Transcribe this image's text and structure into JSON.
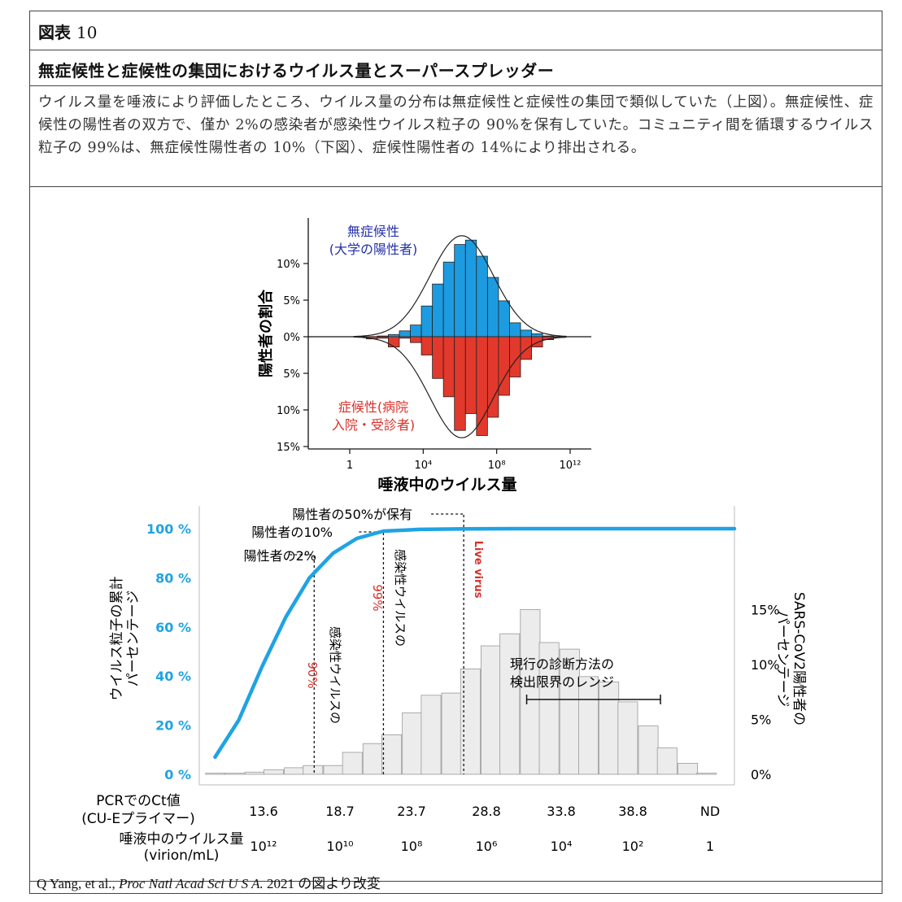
{
  "figure_label": {
    "prefix": "図表",
    "number": "10"
  },
  "title": "無症候性と症候性の集団におけるウイルス量とスーパースプレッダー",
  "description": "ウイルス量を唾液により評価したところ、ウイルス量の分布は無症候性と症候性の集団で類似していた（上図）。無症候性、症候性の陽性者の双方で、僅か 2%の感染者が感染性ウイルス粒子の 90%を保有していた。コミュニティ間を循環するウイルス粒子の 99%は、無症候性陽性者の 10%（下図）、症候性陽性者の 14%により排出される。",
  "source": {
    "authors": "Q Yang, et al., ",
    "journal": "Proc Natl Acad Sci U S A.",
    "rest": " 2021 の図より改変"
  },
  "colors": {
    "asymptomatic": "#1d9be0",
    "symptomatic": "#e2392c",
    "cumulative": "#1fa3e3",
    "hist_fill": "#ececec",
    "red_text": "#d8302a",
    "blue_text": "#2331a8"
  },
  "chart_data": [
    {
      "type": "bar",
      "ylabel": "陽性者の割合",
      "xlabel": "唾液中のウイルス量",
      "x_ticks": [
        "1",
        "10⁴",
        "10⁸",
        "10¹²"
      ],
      "y_ticks_top": [
        "10%",
        "5%",
        "0%"
      ],
      "y_ticks_bottom": [
        "5%",
        "10%",
        "15%"
      ],
      "ylim": [
        -15,
        15
      ],
      "x_log10_range": [
        0,
        12
      ],
      "bin_width_log10": 0.6,
      "x_log10_bin_starts": [
        0.3,
        0.9,
        1.5,
        2.1,
        2.7,
        3.3,
        3.9,
        4.5,
        5.1,
        5.7,
        6.3,
        6.9,
        7.5,
        8.1,
        8.7,
        9.3,
        9.9,
        10.5,
        11.1
      ],
      "series": [
        {
          "name": "無症候性\n(大学の陽性者)",
          "values": [
            0,
            0,
            0.1,
            0.3,
            0.8,
            1.6,
            4.2,
            7.2,
            10.2,
            12.6,
            13.2,
            11.0,
            8.1,
            4.9,
            1.9,
            0.9,
            0.4,
            0.1,
            0
          ]
        },
        {
          "name": "症候性(病院\n入院・受診者)",
          "values": [
            0,
            -0.3,
            -0.2,
            -1.4,
            -0.2,
            -0.8,
            -2.5,
            -5.7,
            -8.2,
            -12.8,
            -10.5,
            -13.5,
            -11.0,
            -8.0,
            -5.5,
            -3.1,
            -1.4,
            -0.4,
            -0.1
          ]
        }
      ]
    },
    {
      "type": "bar",
      "left_ylabel": "ウイルス粒子の累計\nパーセンテージ",
      "right_ylabel": "SARS-CoV2陽性者の\nパーセンテージ",
      "left_y_ticks": [
        "100 %",
        "80 %",
        "60 %",
        "40 %",
        "20 %",
        "0 %"
      ],
      "right_y_ticks": [
        "15%",
        "10%",
        "5%",
        "0%"
      ],
      "row1_label": "PCRでのCt値\n(CU-Eプライマー)",
      "row1_ticks": [
        "13.6",
        "18.7",
        "23.7",
        "28.8",
        "33.8",
        "38.8",
        "ND"
      ],
      "row2_label": "唾液中のウイルス量\n(virion/mL)",
      "row2_ticks": [
        "10¹²",
        "10¹⁰",
        "10⁸",
        "10⁶",
        "10⁴",
        "10²",
        "1"
      ],
      "ct_range": [
        12,
        46
      ],
      "bin_starts_ct": [
        12.4,
        13.6,
        14.9,
        16.1,
        17.4,
        18.6,
        19.9,
        21.1,
        22.4,
        23.6,
        24.9,
        26.1,
        27.4,
        28.6,
        29.9,
        31.1,
        32.4,
        33.6,
        34.9,
        36.1,
        37.4,
        38.6,
        39.9,
        41.1,
        42.4,
        43.6
      ],
      "bin_width_ct": 1.25,
      "positives_pct": [
        0.1,
        0.1,
        0.2,
        0.4,
        0.6,
        0.8,
        0.8,
        2.0,
        2.8,
        3.6,
        5.6,
        7.2,
        7.4,
        9.6,
        11.7,
        12.8,
        15.0,
        12.0,
        11.4,
        8.9,
        8.4,
        6.6,
        4.4,
        2.4,
        1.0,
        0.1
      ],
      "cumulative_pct_by_ct": [
        [
          13.0,
          7
        ],
        [
          14.5,
          22
        ],
        [
          16.0,
          44
        ],
        [
          17.5,
          64
        ],
        [
          19.0,
          80
        ],
        [
          20.5,
          90
        ],
        [
          22.0,
          96
        ],
        [
          23.7,
          99
        ],
        [
          26.0,
          99.7
        ],
        [
          28.8,
          99.9
        ],
        [
          32.0,
          100
        ],
        [
          46.0,
          100
        ]
      ],
      "guides": [
        {
          "label": "陽性者の2%",
          "ct": 19.3
        },
        {
          "label": "陽性者の10%",
          "ct": 23.7
        },
        {
          "label": "陽性者の50%が保有",
          "ct": 28.8
        }
      ],
      "annotations": {
        "a90_text": "感染性ウイルスの",
        "a90_pct": "90%",
        "a99_text": "感染性ウイルスの",
        "a99_pct": "99%",
        "live_virus": "Live virus",
        "detect_limit": "現行の診断方法の\n検出限界のレンジ",
        "detect_range_ct": [
          32.8,
          41.3
        ]
      }
    }
  ]
}
